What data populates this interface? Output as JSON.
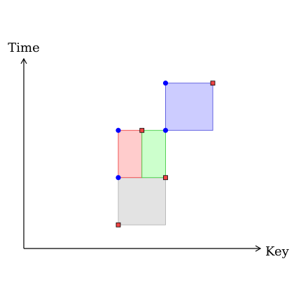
{
  "axes": {
    "x_label": "Key",
    "y_label": "Time"
  },
  "colors": {
    "axis": "#000000",
    "gray_fill": "#e3e3e3",
    "gray_stroke": "#b3b3b3",
    "red_fill": "#ffcccc",
    "red_stroke": "#ee4444",
    "green_fill": "#ccffcc",
    "green_stroke": "#44cc44",
    "blue_fill": "#ccccff",
    "blue_stroke": "#5555dd",
    "circle_marker": "#0000ff",
    "square_marker_fill": "#ee4444",
    "square_marker_stroke": "#000000"
  },
  "regions": [
    {
      "name": "gray-region",
      "key_range": [
        4,
        6
      ],
      "time_range": [
        1,
        3
      ]
    },
    {
      "name": "red-region",
      "key_range": [
        4,
        5
      ],
      "time_range": [
        3,
        5
      ]
    },
    {
      "name": "green-region",
      "key_range": [
        5,
        6
      ],
      "time_range": [
        3,
        5
      ]
    },
    {
      "name": "blue-region",
      "key_range": [
        6,
        8
      ],
      "time_range": [
        5,
        7
      ]
    }
  ],
  "circle_markers": [
    {
      "key": 4,
      "time": 3
    },
    {
      "key": 4,
      "time": 5
    },
    {
      "key": 6,
      "time": 5
    },
    {
      "key": 6,
      "time": 7
    }
  ],
  "square_markers": [
    {
      "key": 4,
      "time": 1
    },
    {
      "key": 6,
      "time": 3
    },
    {
      "key": 5,
      "time": 5
    },
    {
      "key": 8,
      "time": 7
    }
  ]
}
